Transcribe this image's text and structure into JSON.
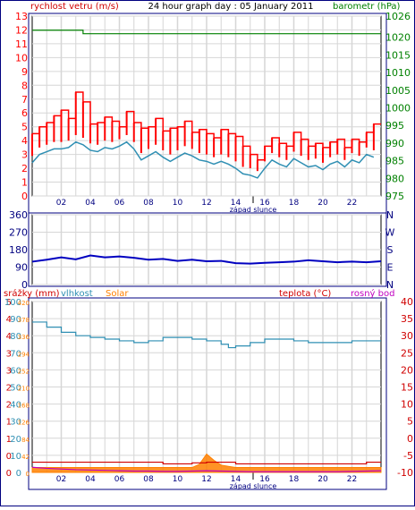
{
  "header": {
    "left_label": "rychlost vetru (m/s)",
    "title": "24 hour graph day : 05 January 2011",
    "right_label": "barometr (hPa)"
  },
  "colors": {
    "frame": "#000080",
    "grid": "#d6d6d6",
    "wind_gust": "#ff0000",
    "wind_avg": "#2f8fb3",
    "barometer": "#008000",
    "direction": "#0000c0",
    "humidity": "#2f8fb3",
    "temperature": "#d00000",
    "dewpoint": "#c000c0",
    "solar": "#ff8000"
  },
  "charts": {
    "wind": {
      "left_ticks": [
        "0",
        "1",
        "2",
        "3",
        "4",
        "5",
        "6",
        "7",
        "8",
        "9",
        "10",
        "11",
        "12",
        "13"
      ],
      "right_ticks": [
        "975",
        "980",
        "985",
        "990",
        "995",
        "1000",
        "1005",
        "1010",
        "1015",
        "1020",
        "1026"
      ],
      "x_ticks": [
        "02",
        "04",
        "06",
        "08",
        "10",
        "12",
        "14",
        "16",
        "18",
        "20",
        "22"
      ],
      "sunset_label": "západ slunce"
    },
    "direction": {
      "left_ticks": [
        "360",
        "270",
        "180",
        "90",
        "0"
      ],
      "right_ticks": [
        "N",
        "W",
        "S",
        "E",
        "N"
      ]
    },
    "climate": {
      "label_precip": "srážky (mm)",
      "label_humidity": "vlhkost",
      "label_solar": "Solar",
      "label_temp": "teplota (°C)",
      "label_dew": "rosný bod",
      "left_ticks_precip": [
        "0",
        "0",
        "1",
        "1",
        "2",
        "2",
        "3",
        "3",
        "4",
        "4",
        "5"
      ],
      "left_ticks_humidity": [
        "0",
        "10",
        "20",
        "30",
        "40",
        "50",
        "60",
        "70",
        "80",
        "90",
        "100"
      ],
      "left_ticks_solar": [
        "0",
        "42",
        "84",
        "126",
        "168",
        "210",
        "252",
        "294",
        "336",
        "378",
        "420"
      ],
      "right_ticks_temp": [
        "-10",
        "-5",
        "0",
        "5",
        "10",
        "15",
        "20",
        "25",
        "30",
        "35",
        "40"
      ],
      "x_ticks": [
        "02",
        "04",
        "06",
        "08",
        "10",
        "12",
        "14",
        "16",
        "18",
        "20",
        "22"
      ],
      "sunset_label": "západ slunce"
    }
  },
  "chart_data": [
    {
      "type": "line",
      "title": "24 hour graph day : 05 January 2011",
      "x_unit": "hour",
      "xlim": [
        0,
        24
      ],
      "ylim_left": [
        0,
        13
      ],
      "ylim_right": [
        975,
        1026
      ],
      "ylabel_left": "rychlost vetru (m/s)",
      "ylabel_right": "barometr (hPa)",
      "series": [
        {
          "name": "rychlost vetru (m/s)",
          "axis": "left",
          "kind": "gust",
          "x": [
            0,
            0.5,
            1,
            1.5,
            2,
            2.5,
            3,
            3.5,
            4,
            4.5,
            5,
            5.5,
            6,
            6.5,
            7,
            7.5,
            8,
            8.5,
            9,
            9.5,
            10,
            10.5,
            11,
            11.5,
            12,
            12.5,
            13,
            13.5,
            14,
            14.5,
            15,
            15.5,
            16,
            16.5,
            17,
            17.5,
            18,
            18.5,
            19,
            19.5,
            20,
            20.5,
            21,
            21.5,
            22,
            22.5,
            23,
            23.5
          ],
          "y": [
            4.5,
            5,
            5.3,
            5.8,
            6.2,
            5.6,
            7.5,
            6.8,
            5.2,
            5.3,
            5.7,
            5.4,
            5,
            6.1,
            5.3,
            4.9,
            5,
            5.6,
            4.7,
            4.9,
            5,
            5.4,
            4.6,
            4.8,
            4.5,
            4.2,
            4.8,
            4.5,
            4.3,
            3.6,
            3,
            2.6,
            3.6,
            4.2,
            3.8,
            3.6,
            4.6,
            4.1,
            3.6,
            3.8,
            3.5,
            3.9,
            4.1,
            3.5,
            4.1,
            3.9,
            4.6,
            5.2
          ]
        },
        {
          "name": "",
          "axis": "left",
          "kind": "average",
          "x": [
            0,
            0.5,
            1,
            1.5,
            2,
            2.5,
            3,
            3.5,
            4,
            4.5,
            5,
            5.5,
            6,
            6.5,
            7,
            7.5,
            8,
            8.5,
            9,
            9.5,
            10,
            10.5,
            11,
            11.5,
            12,
            12.5,
            13,
            13.5,
            14,
            14.5,
            15,
            15.5,
            16,
            16.5,
            17,
            17.5,
            18,
            18.5,
            19,
            19.5,
            20,
            20.5,
            21,
            21.5,
            22,
            22.5,
            23,
            23.5
          ],
          "y": [
            2.4,
            3,
            3.2,
            3.4,
            3.4,
            3.5,
            3.9,
            3.7,
            3.3,
            3.2,
            3.5,
            3.4,
            3.6,
            3.9,
            3.4,
            2.6,
            2.9,
            3.2,
            2.8,
            2.5,
            2.8,
            3.1,
            2.9,
            2.6,
            2.5,
            2.3,
            2.5,
            2.3,
            2,
            1.6,
            1.5,
            1.3,
            2,
            2.6,
            2.3,
            2.1,
            2.7,
            2.4,
            2.1,
            2.2,
            1.9,
            2.3,
            2.5,
            2.1,
            2.6,
            2.4,
            3,
            2.8
          ]
        },
        {
          "name": "barometr (hPa)",
          "axis": "right",
          "x": [
            0,
            1,
            2,
            3,
            3.5,
            4,
            5,
            6,
            7,
            8,
            9,
            10,
            11,
            12,
            13,
            14,
            15,
            16,
            17,
            18,
            19,
            20,
            21,
            22,
            22.5,
            23,
            24
          ],
          "y": [
            1022,
            1022,
            1022,
            1022,
            1021,
            1021,
            1021,
            1021,
            1021,
            1021,
            1021,
            1021,
            1021,
            1021,
            1021,
            1021,
            1021,
            1021,
            1021,
            1021,
            1021,
            1021,
            1021,
            1021,
            1021,
            1021,
            1021
          ]
        }
      ]
    },
    {
      "type": "scatter",
      "x_unit": "hour",
      "xlim": [
        0,
        24
      ],
      "ylim": [
        0,
        360
      ],
      "series": [
        {
          "name": "",
          "x": [
            0,
            1,
            2,
            3,
            4,
            5,
            6,
            7,
            8,
            9,
            10,
            11,
            12,
            13,
            14,
            15,
            16,
            17,
            18,
            19,
            20,
            21,
            22,
            23,
            24
          ],
          "y": [
            118,
            128,
            140,
            130,
            150,
            140,
            145,
            138,
            128,
            132,
            122,
            128,
            120,
            122,
            110,
            108,
            112,
            115,
            118,
            125,
            120,
            115,
            118,
            115,
            120
          ]
        }
      ]
    },
    {
      "type": "line",
      "x_unit": "hour",
      "xlim": [
        0,
        24
      ],
      "ylim_left_humidity": [
        0,
        100
      ],
      "ylim_right_temp": [
        -10,
        40
      ],
      "series": [
        {
          "name": "vlhkost",
          "axis": "left",
          "x": [
            0,
            1,
            2,
            3,
            4,
            5,
            6,
            7,
            8,
            9,
            10,
            11,
            12,
            13,
            13.5,
            14,
            15,
            16,
            17,
            18,
            19,
            20,
            21,
            22,
            23,
            24
          ],
          "y": [
            88,
            85,
            82,
            80,
            79,
            78,
            77,
            76,
            77,
            79,
            79,
            78,
            77,
            75,
            73,
            74,
            76,
            78,
            78,
            77,
            76,
            76,
            76,
            77,
            77,
            77
          ]
        },
        {
          "name": "teplota (°C)",
          "axis": "right",
          "x": [
            0,
            1,
            2,
            3,
            4,
            5,
            6,
            7,
            8,
            9,
            10,
            11,
            12,
            13,
            14,
            15,
            16,
            17,
            18,
            19,
            20,
            21,
            22,
            23,
            24
          ],
          "y": [
            -7,
            -7,
            -7,
            -7,
            -7,
            -7,
            -7,
            -7,
            -7,
            -7.5,
            -7.5,
            -7.2,
            -7,
            -7,
            -7.5,
            -7.5,
            -7.5,
            -7.5,
            -7.5,
            -7.5,
            -7.5,
            -7.5,
            -7.5,
            -7,
            -7
          ]
        },
        {
          "name": "rosný bod",
          "axis": "right",
          "x": [
            0,
            1,
            2,
            3,
            4,
            5,
            6,
            7,
            8,
            9,
            10,
            11,
            12,
            13,
            14,
            15,
            16,
            17,
            18,
            19,
            20,
            21,
            22,
            23,
            24
          ],
          "y": [
            -8.5,
            -8.8,
            -9,
            -9.2,
            -9.3,
            -9.4,
            -9.5,
            -9.6,
            -9.6,
            -9.7,
            -9.7,
            -9.6,
            -9.5,
            -9.6,
            -9.7,
            -9.8,
            -9.8,
            -9.8,
            -9.8,
            -9.8,
            -9.8,
            -9.8,
            -9.7,
            -9.6,
            -9.5
          ]
        },
        {
          "name": "Solar",
          "axis": "solar",
          "x": [
            0,
            1,
            2,
            3,
            4,
            5,
            6,
            7,
            8,
            9,
            10,
            11,
            11.5,
            12,
            12.5,
            13,
            14,
            15,
            16,
            17,
            18,
            19,
            20,
            21,
            22,
            23,
            24
          ],
          "y": [
            12,
            12,
            12,
            12,
            12,
            12,
            12,
            12,
            12,
            12,
            12,
            12,
            20,
            45,
            30,
            18,
            12,
            12,
            12,
            12,
            12,
            12,
            12,
            12,
            12,
            12,
            12
          ]
        },
        {
          "name": "srážky (mm)",
          "axis": "precip",
          "x": [
            0,
            24
          ],
          "y": [
            0,
            0
          ]
        }
      ]
    }
  ]
}
